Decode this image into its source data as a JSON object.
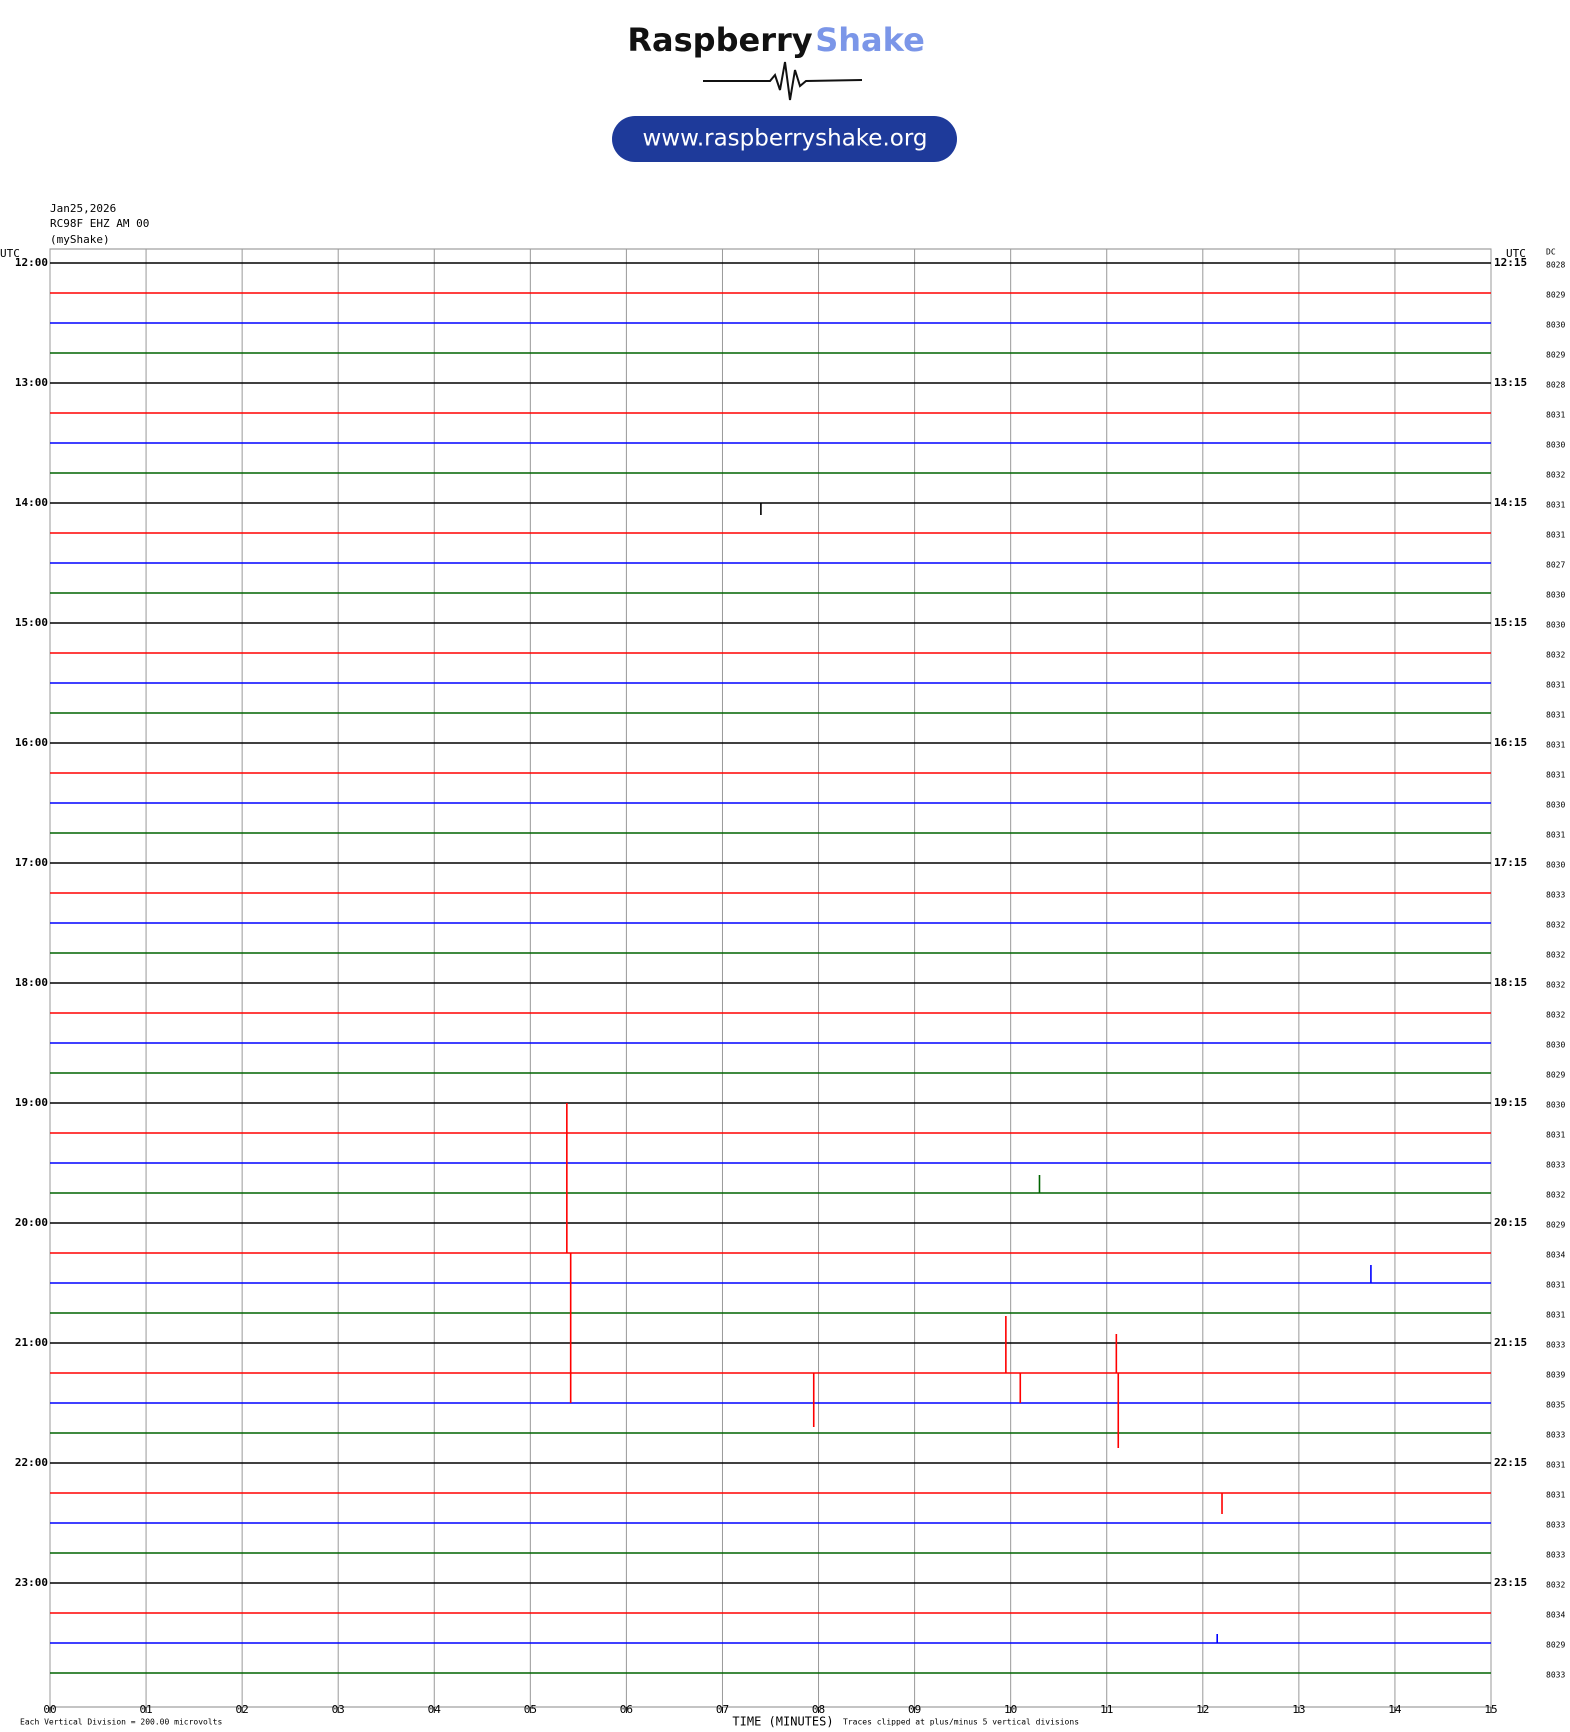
{
  "header": {
    "brand": "Raspberry",
    "brand_accent": "Shake",
    "url": "www.raspberryshake.org"
  },
  "chart_data": {
    "type": "helicorder",
    "title": "Jan25,2026",
    "station": "RC98F EHZ AM 00",
    "subtitle": "(myShake)",
    "left_axis_label": "UTC",
    "right_axis_label": "UTC",
    "dc_label": "DC",
    "xlabel": "TIME (MINUTES)",
    "scale_note": "Each Vertical Division =  200.00 microvolts",
    "clip_note": "Traces clipped at plus/minus 5 vertical divisions",
    "xlim": [
      0,
      15
    ],
    "xticks": [
      {
        "value": 0,
        "label": "00"
      },
      {
        "value": 1,
        "label": "01"
      },
      {
        "value": 2,
        "label": "02"
      },
      {
        "value": 3,
        "label": "03"
      },
      {
        "value": 4,
        "label": "04"
      },
      {
        "value": 5,
        "label": "05"
      },
      {
        "value": 6,
        "label": "06"
      },
      {
        "value": 7,
        "label": "07"
      },
      {
        "value": 8,
        "label": "08"
      },
      {
        "value": 9,
        "label": "09"
      },
      10,
      11,
      12,
      13,
      14,
      15
    ],
    "colors": [
      "#000000",
      "#ff0000",
      "#0000ff",
      "#006400"
    ],
    "hours": [
      {
        "left": "12:00",
        "right": "12:15"
      },
      {
        "left": "13:00",
        "right": "13:15"
      },
      {
        "left": "14:00",
        "right": "14:15"
      },
      {
        "left": "15:00",
        "right": "15:15"
      },
      {
        "left": "16:00",
        "right": "16:15"
      },
      {
        "left": "17:00",
        "right": "17:15"
      },
      {
        "left": "18:00",
        "right": "18:15"
      },
      {
        "left": "19:00",
        "right": "19:15"
      },
      {
        "left": "20:00",
        "right": "20:15"
      },
      {
        "left": "21:00",
        "right": "21:15"
      },
      {
        "left": "22:00",
        "right": "22:15"
      },
      {
        "left": "23:00",
        "right": "23:15"
      }
    ],
    "dc": [
      8028,
      8029,
      8030,
      8029,
      8028,
      8031,
      8030,
      8032,
      8031,
      8031,
      8027,
      8030,
      8030,
      8032,
      8031,
      8031,
      8031,
      8031,
      8030,
      8031,
      8030,
      8033,
      8032,
      8032,
      8032,
      8032,
      8030,
      8029,
      8030,
      8031,
      8033,
      8032,
      8029,
      8034,
      8031,
      8031,
      8033,
      8039,
      8035,
      8033,
      8031,
      8031,
      8033,
      8033,
      8032,
      8034,
      8029,
      8033
    ],
    "events": [
      {
        "row": 33,
        "minute": 5.38,
        "amplitude": 5
      },
      {
        "row": 33,
        "minute": 5.42,
        "amplitude": -5
      },
      {
        "row": 37,
        "minute": 9.95,
        "amplitude": 1.9
      },
      {
        "row": 37,
        "minute": 10.1,
        "amplitude": -1.0
      },
      {
        "row": 37,
        "minute": 11.1,
        "amplitude": 1.3
      },
      {
        "row": 37,
        "minute": 11.12,
        "amplitude": -2.5
      },
      {
        "row": 37,
        "minute": 7.95,
        "amplitude": -1.8
      },
      {
        "row": 31,
        "minute": 10.3,
        "amplitude": 0.6
      },
      {
        "row": 34,
        "minute": 13.75,
        "amplitude": 0.6
      },
      {
        "row": 8,
        "minute": 7.4,
        "amplitude": -0.4
      },
      {
        "row": 41,
        "minute": 12.2,
        "amplitude": -0.7
      },
      {
        "row": 46,
        "minute": 12.15,
        "amplitude": 0.3
      }
    ]
  }
}
